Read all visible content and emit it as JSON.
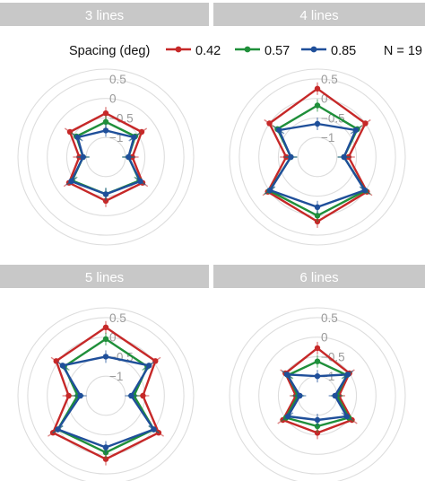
{
  "legend": {
    "title": "Spacing (deg)",
    "n_label": "N = 19"
  },
  "chart_data": {
    "type": "radar",
    "n_label": "N = 19",
    "rlim": [
      -1.5,
      0.75
    ],
    "r_ticks": [
      0.5,
      0,
      -0.5,
      -1
    ],
    "r_tick_labels": [
      "0.5",
      "0",
      "−0.5",
      "−1"
    ],
    "rings": [
      0.5,
      0,
      -0.5,
      -1
    ],
    "n_axes": 8,
    "axis_angles_deg": [
      90,
      35,
      0,
      -35,
      -90,
      -145,
      180,
      145
    ],
    "series_colors": [
      "#c62828",
      "#1f8f3a",
      "#1f4f9a"
    ],
    "series_labels": [
      "0.42",
      "0.57",
      "0.85"
    ],
    "panels": [
      {
        "title": "3 lines",
        "series": [
          {
            "name": "0.42",
            "values": [
              -0.38,
              -0.38,
              -0.82,
              -0.35,
              -0.38,
              -0.35,
              -0.82,
              -0.38
            ]
          },
          {
            "name": "0.57",
            "values": [
              -0.6,
              -0.58,
              -0.92,
              -0.45,
              -0.55,
              -0.45,
              -0.92,
              -0.58
            ]
          },
          {
            "name": "0.85",
            "values": [
              -0.82,
              -0.62,
              -0.92,
              -0.42,
              -0.55,
              -0.42,
              -0.92,
              -0.62
            ]
          }
        ]
      },
      {
        "title": "4 lines",
        "series": [
          {
            "name": "0.42",
            "values": [
              0.25,
              0.0,
              -0.7,
              0.05,
              0.15,
              0.05,
              -0.7,
              0.0
            ]
          },
          {
            "name": "0.57",
            "values": [
              -0.18,
              -0.25,
              -0.82,
              0.0,
              0.0,
              0.0,
              -0.82,
              -0.25
            ]
          },
          {
            "name": "0.85",
            "values": [
              -0.65,
              -0.3,
              -0.82,
              -0.02,
              -0.22,
              -0.02,
              -0.82,
              -0.3
            ]
          }
        ]
      },
      {
        "title": "5 lines",
        "series": [
          {
            "name": "0.42",
            "values": [
              0.25,
              0.05,
              -0.55,
              0.15,
              0.12,
              0.15,
              -0.55,
              0.05
            ]
          },
          {
            "name": "0.57",
            "values": [
              -0.05,
              -0.2,
              -0.78,
              0.0,
              -0.05,
              0.0,
              -0.78,
              -0.2
            ]
          },
          {
            "name": "0.85",
            "values": [
              -0.5,
              -0.15,
              -0.85,
              0.0,
              -0.18,
              0.0,
              -0.85,
              -0.15
            ]
          }
        ]
      },
      {
        "title": "6 lines",
        "series": [
          {
            "name": "0.42",
            "values": [
              -0.28,
              -0.5,
              -0.95,
              -0.42,
              -0.55,
              -0.42,
              -0.95,
              -0.5
            ]
          },
          {
            "name": "0.57",
            "values": [
              -0.62,
              -0.58,
              -1.0,
              -0.52,
              -0.72,
              -0.52,
              -1.0,
              -0.58
            ]
          },
          {
            "name": "0.85",
            "values": [
              -1.0,
              -0.55,
              -1.05,
              -0.58,
              -0.88,
              -0.58,
              -1.05,
              -0.55
            ]
          }
        ]
      }
    ]
  }
}
